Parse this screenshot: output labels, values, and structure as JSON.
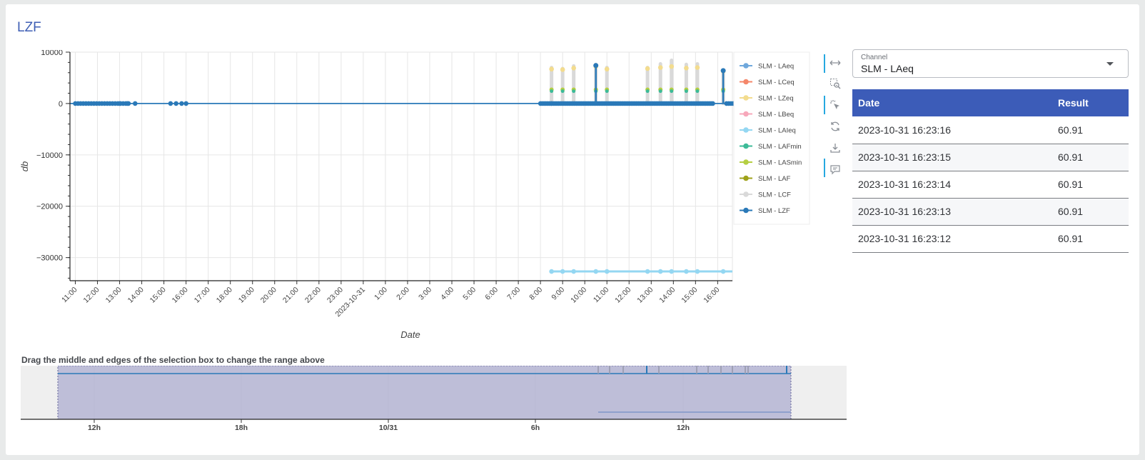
{
  "page": {
    "title": "LZF"
  },
  "chart_data": {
    "type": "line",
    "xlabel": "Date",
    "ylabel": "db",
    "ylim": [
      -34500,
      10000
    ],
    "yticks": [
      10000,
      0,
      -10000,
      -20000,
      -30000
    ],
    "ytick_labels": [
      "10000",
      "0",
      "−10000",
      "−20000",
      "−30000"
    ],
    "xticks": [
      "11:00",
      "12:00",
      "13:00",
      "14:00",
      "15:00",
      "16:00",
      "17:00",
      "18:00",
      "19:00",
      "20:00",
      "21:00",
      "22:00",
      "23:00",
      "2023-10-31",
      "1:00",
      "2:00",
      "3:00",
      "4:00",
      "5:00",
      "6:00",
      "7:00",
      "8:00",
      "9:00",
      "10:00",
      "11:00",
      "12:00",
      "13:00",
      "14:00",
      "15:00",
      "16:00"
    ],
    "grid": true,
    "legend_position": "right",
    "series": [
      {
        "name": "SLM - LAeq",
        "color": "#6fa8dc"
      },
      {
        "name": "SLM - LCeq",
        "color": "#f4876a"
      },
      {
        "name": "SLM - LZeq",
        "color": "#f3dc8e"
      },
      {
        "name": "SLM - LBeq",
        "color": "#f7a8bb"
      },
      {
        "name": "SLM - LAIeq",
        "color": "#94d7f2",
        "level": -32700
      },
      {
        "name": "SLM - LAFmin",
        "color": "#3dbb98"
      },
      {
        "name": "SLM - LASmin",
        "color": "#b5cf42"
      },
      {
        "name": "SLM - LAF",
        "color": "#9fa21a"
      },
      {
        "name": "SLM - LCF",
        "color": "#d9d9d9"
      },
      {
        "name": "SLM - LZF",
        "color": "#2a79b8"
      }
    ],
    "baseline_value": 0,
    "spike_points": [
      {
        "x": "8:30",
        "lcf": 7000,
        "lzeq": 6700
      },
      {
        "x": "9:00",
        "lcf": 6800,
        "lzeq": 6600
      },
      {
        "x": "9:30",
        "lcf": 7300,
        "lzeq": 6900
      },
      {
        "x": "10:30",
        "lcf": 7600,
        "lzeq": 7200,
        "lzf": 7400
      },
      {
        "x": "11:00",
        "lcf": 7000,
        "lzeq": 6700
      },
      {
        "x": "12:50",
        "lcf": 7000,
        "lzeq": 6800
      },
      {
        "x": "13:25",
        "lcf": 7700,
        "lzeq": 7000
      },
      {
        "x": "13:55",
        "lcf": 8400,
        "lzeq": 7200
      },
      {
        "x": "14:35",
        "lcf": 7600,
        "lzeq": 6900
      },
      {
        "x": "15:05",
        "lcf": 7700,
        "lzeq": 7000
      },
      {
        "x": "16:15",
        "lcf": 6500,
        "lzeq": 6300,
        "lzf": 6400
      }
    ],
    "navigator": {
      "hint": "Drag the middle and edges of the selection box to change the range above",
      "tick_labels": [
        "12h",
        "18h",
        "10/31",
        "6h",
        "12h"
      ]
    }
  },
  "toolbar": {
    "icons": [
      "pan-icon",
      "box-zoom-icon",
      "tap-select-icon",
      "reset-icon",
      "save-icon",
      "hover-icon"
    ]
  },
  "channel": {
    "label": "Channel",
    "value": "SLM - LAeq"
  },
  "results": {
    "headers": {
      "date": "Date",
      "result": "Result"
    },
    "rows": [
      {
        "date": "2023-10-31 16:23:16",
        "result": "60.91"
      },
      {
        "date": "2023-10-31 16:23:15",
        "result": "60.91"
      },
      {
        "date": "2023-10-31 16:23:14",
        "result": "60.91"
      },
      {
        "date": "2023-10-31 16:23:13",
        "result": "60.91"
      },
      {
        "date": "2023-10-31 16:23:12",
        "result": "60.91"
      }
    ]
  }
}
